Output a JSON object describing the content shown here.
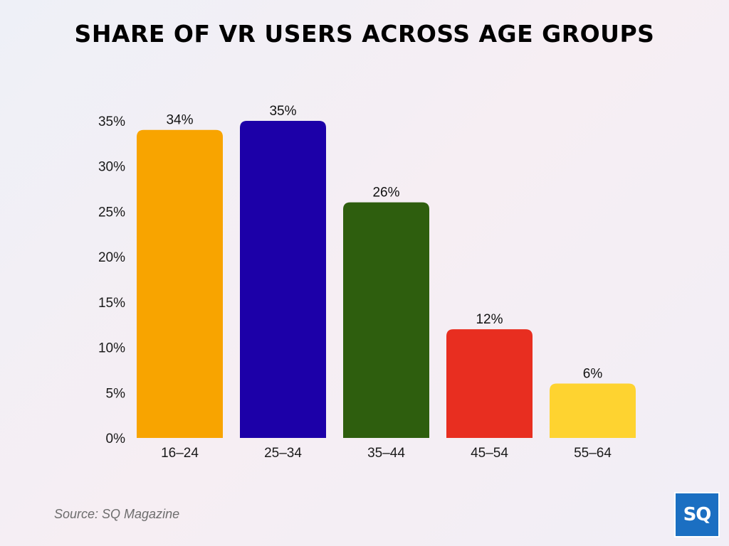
{
  "title": "SHARE OF VR USERS ACROSS AGE GROUPS",
  "source": "Source: SQ Magazine",
  "logo": {
    "text": "SQ",
    "color": "#1b6fc2"
  },
  "chart_data": {
    "type": "bar",
    "categories": [
      "16–24",
      "25–34",
      "35–44",
      "45–54",
      "55–64"
    ],
    "values": [
      34,
      35,
      26,
      12,
      6
    ],
    "value_labels": [
      "34%",
      "35%",
      "26%",
      "12%",
      "6%"
    ],
    "colors": [
      "#f8a400",
      "#1c00a8",
      "#2e5e0e",
      "#e82e20",
      "#fed330"
    ],
    "ylim": [
      0,
      35
    ],
    "yticks": [
      0,
      5,
      10,
      15,
      20,
      25,
      30,
      35
    ],
    "ytick_labels": [
      "0%",
      "5%",
      "10%",
      "15%",
      "20%",
      "25%",
      "30%",
      "35%"
    ],
    "xlabel": "",
    "ylabel": "",
    "grid": false,
    "legend": "none"
  }
}
